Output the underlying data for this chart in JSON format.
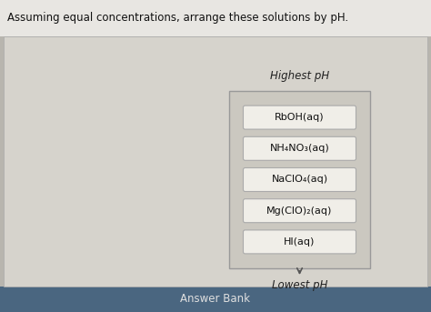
{
  "title": "Assuming equal concentrations, arrange these solutions by pH.",
  "highest_label": "Highest pH",
  "lowest_label": "Lowest pH",
  "answer_bank_label": "Answer Bank",
  "compounds": [
    "RbOH(aq)",
    "NH₄NO₃(aq)",
    "NaClO₄(aq)",
    "Mg(ClO)₂(aq)",
    "HI(aq)"
  ],
  "title_bg": "#e8e6e2",
  "content_bg": "#d6d3cc",
  "ordered_box_bg": "#cbc8c0",
  "ordered_box_border": "#999999",
  "inner_box_bg": "#f0eee8",
  "inner_box_border": "#aaaaaa",
  "answer_bank_bg": "#4a6680",
  "answer_bank_text": "#e0e0e0",
  "title_color": "#111111",
  "label_color": "#222222",
  "compound_color": "#111111",
  "fig_bg": "#b8b5ae"
}
